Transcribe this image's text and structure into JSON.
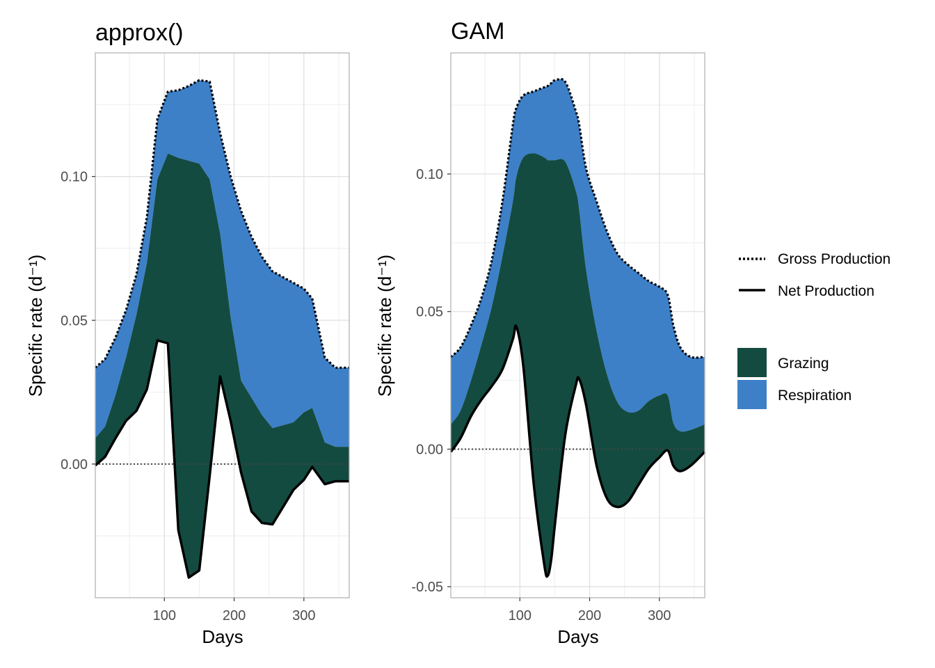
{
  "legend": {
    "lines": [
      {
        "label": "Gross Production",
        "style": "dotted"
      },
      {
        "label": "Net Production",
        "style": "solid"
      }
    ],
    "fills": [
      {
        "label": "Grazing",
        "color": "#134b40"
      },
      {
        "label": "Respiration",
        "color": "#3d80c8"
      }
    ]
  },
  "colors": {
    "grazing": "#134b40",
    "respiration": "#3d80c8",
    "line": "#000000",
    "grid": "#e0e0e0",
    "panel_border": "#b3b3b3"
  },
  "chart_data": [
    {
      "type": "area",
      "title": "approx()",
      "xlabel": "Days",
      "ylabel": "Specific rate (d⁻¹)",
      "xlim": [
        1,
        365
      ],
      "ylim": [
        -0.0465,
        0.143
      ],
      "x_ticks": [
        100,
        200,
        300
      ],
      "y_ticks": [
        0.0,
        0.05,
        0.1
      ],
      "y_tick_labels": [
        "0.00",
        "0.05",
        "0.10"
      ],
      "reference_line_y": 0,
      "grid": true,
      "legend_position": "right",
      "x": [
        1,
        15,
        30,
        45,
        60,
        75,
        90,
        105,
        120,
        135,
        150,
        165,
        180,
        195,
        210,
        225,
        240,
        255,
        270,
        285,
        300,
        312,
        330,
        345,
        365
      ],
      "series": [
        {
          "name": "Gross Production",
          "values": [
            0.0335,
            0.0365,
            0.044,
            0.0535,
            0.066,
            0.086,
            0.12,
            0.1295,
            0.13,
            0.1315,
            0.1335,
            0.133,
            0.115,
            0.1,
            0.088,
            0.079,
            0.072,
            0.067,
            0.065,
            0.063,
            0.061,
            0.0575,
            0.037,
            0.0335,
            0.0335
          ]
        },
        {
          "name": "Respiration/Grazing boundary",
          "values": [
            0.009,
            0.013,
            0.024,
            0.037,
            0.052,
            0.07,
            0.099,
            0.108,
            0.1065,
            0.1055,
            0.1045,
            0.099,
            0.08,
            0.051,
            0.029,
            0.023,
            0.017,
            0.0125,
            0.0135,
            0.0145,
            0.018,
            0.0195,
            0.0075,
            0.006,
            0.006
          ]
        },
        {
          "name": "Net Production",
          "values": [
            -0.0005,
            0.0025,
            0.009,
            0.015,
            0.0185,
            0.026,
            0.043,
            0.042,
            -0.023,
            -0.0395,
            -0.037,
            -0.004,
            0.0305,
            0.015,
            -0.003,
            -0.0165,
            -0.0205,
            -0.021,
            -0.015,
            -0.009,
            -0.0055,
            -0.001,
            -0.007,
            -0.006,
            -0.006
          ]
        }
      ]
    },
    {
      "type": "area",
      "title": "GAM",
      "xlabel": "Days",
      "ylabel": "Specific rate (d⁻¹)",
      "xlim": [
        1,
        365
      ],
      "ylim": [
        -0.054,
        0.144
      ],
      "x_ticks": [
        100,
        200,
        300
      ],
      "y_ticks": [
        -0.05,
        0.0,
        0.05,
        0.1
      ],
      "y_tick_labels": [
        "-0.05",
        "0.00",
        "0.05",
        "0.10"
      ],
      "reference_line_y": 0,
      "grid": true,
      "legend_position": "right",
      "x": [
        1,
        15,
        30,
        45,
        60,
        75,
        90,
        95,
        105,
        120,
        135,
        140,
        145,
        150,
        165,
        180,
        185,
        195,
        210,
        225,
        240,
        255,
        270,
        285,
        300,
        312,
        320,
        330,
        345,
        365
      ],
      "series": [
        {
          "name": "Gross Production",
          "values": [
            0.0335,
            0.037,
            0.045,
            0.055,
            0.069,
            0.09,
            0.118,
            0.124,
            0.1285,
            0.13,
            0.1315,
            0.132,
            0.133,
            0.134,
            0.1335,
            0.123,
            0.118,
            0.102,
            0.09,
            0.079,
            0.071,
            0.067,
            0.064,
            0.061,
            0.059,
            0.056,
            0.045,
            0.037,
            0.0335,
            0.0335
          ]
        },
        {
          "name": "Respiration/Grazing boundary",
          "values": [
            0.009,
            0.014,
            0.025,
            0.038,
            0.052,
            0.07,
            0.09,
            0.099,
            0.106,
            0.1075,
            0.106,
            0.105,
            0.105,
            0.105,
            0.1045,
            0.094,
            0.087,
            0.065,
            0.043,
            0.027,
            0.017,
            0.0135,
            0.014,
            0.0175,
            0.0195,
            0.0195,
            0.0095,
            0.0065,
            0.007,
            0.009
          ]
        },
        {
          "name": "Net Production",
          "values": [
            -0.001,
            0.004,
            0.012,
            0.018,
            0.023,
            0.029,
            0.04,
            0.0445,
            0.03,
            -0.013,
            -0.042,
            -0.046,
            -0.04,
            -0.028,
            0.005,
            0.023,
            0.0255,
            0.016,
            -0.006,
            -0.018,
            -0.021,
            -0.019,
            -0.013,
            -0.007,
            -0.003,
            -0.0005,
            -0.006,
            -0.008,
            -0.006,
            -0.001
          ]
        }
      ]
    }
  ]
}
